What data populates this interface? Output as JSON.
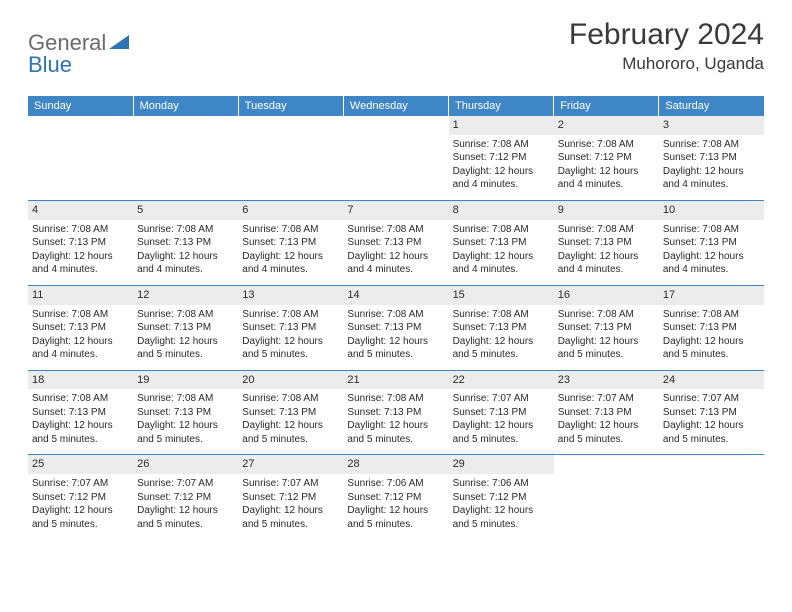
{
  "logo": {
    "prefix": "General",
    "suffix": "Blue"
  },
  "header": {
    "title": "February 2024",
    "location": "Muhororo, Uganda"
  },
  "colors": {
    "header_bg": "#3f86c7",
    "header_text": "#ffffff",
    "daynum_bg": "#ececec",
    "row_divider": "#3f86c7",
    "logo_gray": "#6b6b6b",
    "logo_blue": "#2f74b5",
    "text": "#2a2a2a"
  },
  "week_days": [
    "Sunday",
    "Monday",
    "Tuesday",
    "Wednesday",
    "Thursday",
    "Friday",
    "Saturday"
  ],
  "weeks": [
    [
      {
        "empty": true
      },
      {
        "empty": true
      },
      {
        "empty": true
      },
      {
        "empty": true
      },
      {
        "num": "1",
        "sunrise": "Sunrise: 7:08 AM",
        "sunset": "Sunset: 7:12 PM",
        "day1": "Daylight: 12 hours",
        "day2": "and 4 minutes."
      },
      {
        "num": "2",
        "sunrise": "Sunrise: 7:08 AM",
        "sunset": "Sunset: 7:12 PM",
        "day1": "Daylight: 12 hours",
        "day2": "and 4 minutes."
      },
      {
        "num": "3",
        "sunrise": "Sunrise: 7:08 AM",
        "sunset": "Sunset: 7:13 PM",
        "day1": "Daylight: 12 hours",
        "day2": "and 4 minutes."
      }
    ],
    [
      {
        "num": "4",
        "sunrise": "Sunrise: 7:08 AM",
        "sunset": "Sunset: 7:13 PM",
        "day1": "Daylight: 12 hours",
        "day2": "and 4 minutes."
      },
      {
        "num": "5",
        "sunrise": "Sunrise: 7:08 AM",
        "sunset": "Sunset: 7:13 PM",
        "day1": "Daylight: 12 hours",
        "day2": "and 4 minutes."
      },
      {
        "num": "6",
        "sunrise": "Sunrise: 7:08 AM",
        "sunset": "Sunset: 7:13 PM",
        "day1": "Daylight: 12 hours",
        "day2": "and 4 minutes."
      },
      {
        "num": "7",
        "sunrise": "Sunrise: 7:08 AM",
        "sunset": "Sunset: 7:13 PM",
        "day1": "Daylight: 12 hours",
        "day2": "and 4 minutes."
      },
      {
        "num": "8",
        "sunrise": "Sunrise: 7:08 AM",
        "sunset": "Sunset: 7:13 PM",
        "day1": "Daylight: 12 hours",
        "day2": "and 4 minutes."
      },
      {
        "num": "9",
        "sunrise": "Sunrise: 7:08 AM",
        "sunset": "Sunset: 7:13 PM",
        "day1": "Daylight: 12 hours",
        "day2": "and 4 minutes."
      },
      {
        "num": "10",
        "sunrise": "Sunrise: 7:08 AM",
        "sunset": "Sunset: 7:13 PM",
        "day1": "Daylight: 12 hours",
        "day2": "and 4 minutes."
      }
    ],
    [
      {
        "num": "11",
        "sunrise": "Sunrise: 7:08 AM",
        "sunset": "Sunset: 7:13 PM",
        "day1": "Daylight: 12 hours",
        "day2": "and 4 minutes."
      },
      {
        "num": "12",
        "sunrise": "Sunrise: 7:08 AM",
        "sunset": "Sunset: 7:13 PM",
        "day1": "Daylight: 12 hours",
        "day2": "and 5 minutes."
      },
      {
        "num": "13",
        "sunrise": "Sunrise: 7:08 AM",
        "sunset": "Sunset: 7:13 PM",
        "day1": "Daylight: 12 hours",
        "day2": "and 5 minutes."
      },
      {
        "num": "14",
        "sunrise": "Sunrise: 7:08 AM",
        "sunset": "Sunset: 7:13 PM",
        "day1": "Daylight: 12 hours",
        "day2": "and 5 minutes."
      },
      {
        "num": "15",
        "sunrise": "Sunrise: 7:08 AM",
        "sunset": "Sunset: 7:13 PM",
        "day1": "Daylight: 12 hours",
        "day2": "and 5 minutes."
      },
      {
        "num": "16",
        "sunrise": "Sunrise: 7:08 AM",
        "sunset": "Sunset: 7:13 PM",
        "day1": "Daylight: 12 hours",
        "day2": "and 5 minutes."
      },
      {
        "num": "17",
        "sunrise": "Sunrise: 7:08 AM",
        "sunset": "Sunset: 7:13 PM",
        "day1": "Daylight: 12 hours",
        "day2": "and 5 minutes."
      }
    ],
    [
      {
        "num": "18",
        "sunrise": "Sunrise: 7:08 AM",
        "sunset": "Sunset: 7:13 PM",
        "day1": "Daylight: 12 hours",
        "day2": "and 5 minutes."
      },
      {
        "num": "19",
        "sunrise": "Sunrise: 7:08 AM",
        "sunset": "Sunset: 7:13 PM",
        "day1": "Daylight: 12 hours",
        "day2": "and 5 minutes."
      },
      {
        "num": "20",
        "sunrise": "Sunrise: 7:08 AM",
        "sunset": "Sunset: 7:13 PM",
        "day1": "Daylight: 12 hours",
        "day2": "and 5 minutes."
      },
      {
        "num": "21",
        "sunrise": "Sunrise: 7:08 AM",
        "sunset": "Sunset: 7:13 PM",
        "day1": "Daylight: 12 hours",
        "day2": "and 5 minutes."
      },
      {
        "num": "22",
        "sunrise": "Sunrise: 7:07 AM",
        "sunset": "Sunset: 7:13 PM",
        "day1": "Daylight: 12 hours",
        "day2": "and 5 minutes."
      },
      {
        "num": "23",
        "sunrise": "Sunrise: 7:07 AM",
        "sunset": "Sunset: 7:13 PM",
        "day1": "Daylight: 12 hours",
        "day2": "and 5 minutes."
      },
      {
        "num": "24",
        "sunrise": "Sunrise: 7:07 AM",
        "sunset": "Sunset: 7:13 PM",
        "day1": "Daylight: 12 hours",
        "day2": "and 5 minutes."
      }
    ],
    [
      {
        "num": "25",
        "sunrise": "Sunrise: 7:07 AM",
        "sunset": "Sunset: 7:12 PM",
        "day1": "Daylight: 12 hours",
        "day2": "and 5 minutes."
      },
      {
        "num": "26",
        "sunrise": "Sunrise: 7:07 AM",
        "sunset": "Sunset: 7:12 PM",
        "day1": "Daylight: 12 hours",
        "day2": "and 5 minutes."
      },
      {
        "num": "27",
        "sunrise": "Sunrise: 7:07 AM",
        "sunset": "Sunset: 7:12 PM",
        "day1": "Daylight: 12 hours",
        "day2": "and 5 minutes."
      },
      {
        "num": "28",
        "sunrise": "Sunrise: 7:06 AM",
        "sunset": "Sunset: 7:12 PM",
        "day1": "Daylight: 12 hours",
        "day2": "and 5 minutes."
      },
      {
        "num": "29",
        "sunrise": "Sunrise: 7:06 AM",
        "sunset": "Sunset: 7:12 PM",
        "day1": "Daylight: 12 hours",
        "day2": "and 5 minutes."
      },
      {
        "empty": true
      },
      {
        "empty": true
      }
    ]
  ]
}
